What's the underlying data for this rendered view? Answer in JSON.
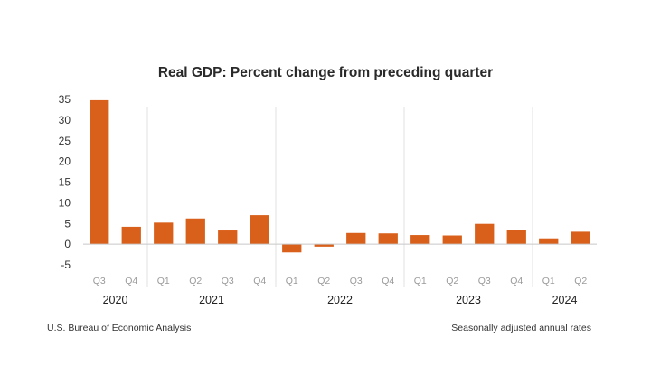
{
  "chart_data": {
    "type": "bar",
    "title": "Real GDP: Percent change from preceding quarter",
    "xlabel": "",
    "ylabel": "",
    "ylim": [
      -5,
      35
    ],
    "yticks": [
      35,
      30,
      25,
      20,
      15,
      10,
      5,
      0,
      -5
    ],
    "bar_color": "#d9601a",
    "categories": [
      "Q3",
      "Q4",
      "Q1",
      "Q2",
      "Q3",
      "Q4",
      "Q1",
      "Q2",
      "Q3",
      "Q4",
      "Q1",
      "Q2",
      "Q3",
      "Q4",
      "Q1",
      "Q2"
    ],
    "years": [
      {
        "label": "2020",
        "quarters": 2
      },
      {
        "label": "2021",
        "quarters": 4
      },
      {
        "label": "2022",
        "quarters": 4
      },
      {
        "label": "2023",
        "quarters": 4
      },
      {
        "label": "2024",
        "quarters": 2
      }
    ],
    "values": [
      34.8,
      4.2,
      5.2,
      6.2,
      3.3,
      7.0,
      -2.0,
      -0.6,
      2.7,
      2.6,
      2.2,
      2.1,
      4.9,
      3.4,
      1.4,
      3.0
    ],
    "grid": false,
    "source": "U.S. Bureau of Economic Analysis",
    "note": "Seasonally adjusted annual rates"
  }
}
